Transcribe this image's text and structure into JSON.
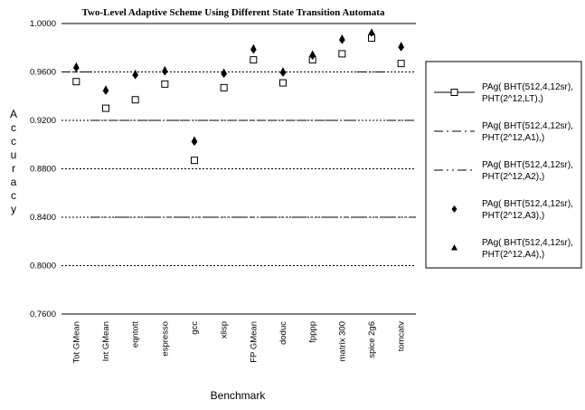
{
  "chart_data": {
    "type": "scatter",
    "title": "Two-Level Adaptive Scheme Using Different State Transition Automata",
    "xlabel": "Benchmark",
    "ylabel": "Accuracy",
    "ylim": [
      0.76,
      1.0
    ],
    "yticks": [
      "0.7600",
      "0.8000",
      "0.8400",
      "0.8800",
      "0.9200",
      "0.9600",
      "1.0000"
    ],
    "categories": [
      "Tot GMean",
      "Int GMean",
      "eqntott",
      "espresso",
      "gcc",
      "xlisp",
      "FP GMean",
      "doduc",
      "fpppp",
      "matrix 300",
      "spice 2g6",
      "tomcatv"
    ],
    "legend_position": "right",
    "series": [
      {
        "name": "PAg( BHT(512,4,12sr), PHT(2^12,LT),)",
        "marker": "open-square",
        "line": "solid",
        "values": [
          0.952,
          0.93,
          0.937,
          0.95,
          0.887,
          0.947,
          0.97,
          0.951,
          0.97,
          0.975,
          0.988,
          0.967
        ]
      },
      {
        "name": "PAg( BHT(512,4,12sr), PHT(2^12,A1),)",
        "marker": "none",
        "line": "dash-dot",
        "values": [
          0.96,
          0.92,
          0.92,
          0.92,
          0.92,
          0.92,
          0.92,
          0.92,
          0.92,
          0.92,
          0.96,
          0.92
        ]
      },
      {
        "name": "PAg( BHT(512,4,12sr), PHT(2^12,A2),)",
        "marker": "none",
        "line": "dash-dot-dot",
        "values": [
          0.96,
          0.84,
          0.84,
          0.84,
          0.84,
          0.84,
          0.84,
          0.84,
          0.84,
          0.84,
          0.84,
          0.84
        ]
      },
      {
        "name": "PAg( BHT(512,4,12sr), PHT(2^12,A3),)",
        "marker": "filled-diamond",
        "line": "none",
        "values": [
          0.963,
          0.944,
          0.957,
          0.96,
          0.902,
          0.958,
          0.978,
          0.959,
          0.973,
          0.986,
          0.992,
          0.98
        ]
      },
      {
        "name": "PAg( BHT(512,4,12sr), PHT(2^12,A4),)",
        "marker": "filled-triangle",
        "line": "none",
        "values": [
          0.965,
          0.946,
          0.959,
          0.962,
          0.904,
          0.96,
          0.98,
          0.961,
          0.975,
          0.988,
          0.993,
          0.982
        ]
      }
    ],
    "colors": {
      "marker": "#000000",
      "grid": "#000000"
    }
  }
}
